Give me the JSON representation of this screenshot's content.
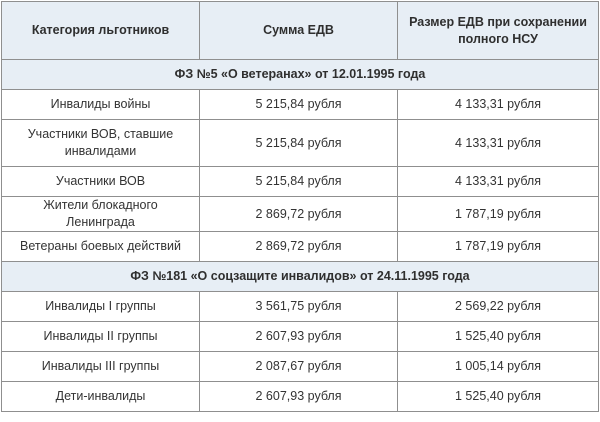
{
  "headers": {
    "category": "Категория льготников",
    "amount": "Сумма ЕДВ",
    "amount_nsu": "Размер ЕДВ при сохранении полного НСУ"
  },
  "sections": [
    {
      "title": "ФЗ №5 «О ветеранах» от 12.01.1995 года",
      "rows": [
        {
          "category": "Инвалиды войны",
          "amount": "5 215,84 рубля",
          "amount_nsu": "4 133,31 рубля"
        },
        {
          "category": "Участники ВОВ, ставшие инвалидами",
          "amount": "5 215,84 рубля",
          "amount_nsu": "4 133,31 рубля"
        },
        {
          "category": "Участники ВОВ",
          "amount": "5 215,84 рубля",
          "amount_nsu": "4 133,31 рубля"
        },
        {
          "category": "Жители блокадного Ленинграда",
          "amount": "2 869,72 рубля",
          "amount_nsu": "1 787,19 рубля"
        },
        {
          "category": "Ветераны боевых действий",
          "amount": "2 869,72 рубля",
          "amount_nsu": "1 787,19 рубля"
        }
      ]
    },
    {
      "title": "ФЗ №181 «О соцзащите инвалидов» от 24.11.1995 года",
      "rows": [
        {
          "category": "Инвалиды I группы",
          "amount": "3 561,75 рубля",
          "amount_nsu": "2 569,22 рубля"
        },
        {
          "category": "Инвалиды II группы",
          "amount": "2 607,93 рубля",
          "amount_nsu": "1 525,40 рубля"
        },
        {
          "category": "Инвалиды III группы",
          "amount": "2 087,67 рубля",
          "amount_nsu": "1 005,14 рубля"
        },
        {
          "category": "Дети-инвалиды",
          "amount": "2 607,93 рубля",
          "amount_nsu": "1 525,40 рубля"
        }
      ]
    }
  ]
}
